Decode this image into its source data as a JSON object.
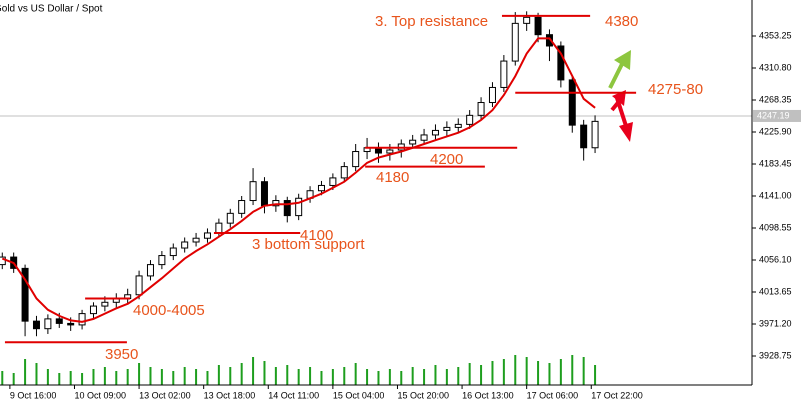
{
  "chart_data": {
    "type": "candlestick",
    "title": "Gold vs US Dollar / Spot",
    "x": [
      -6,
      -3,
      0,
      3,
      6,
      9,
      12,
      15,
      18,
      21,
      24,
      27,
      30,
      33,
      36,
      39,
      42,
      45,
      48,
      51,
      54,
      57,
      60,
      63,
      66,
      69,
      72,
      75,
      78,
      81,
      84,
      87,
      90,
      93,
      96,
      99,
      102,
      105,
      108,
      111,
      114,
      117,
      120,
      123,
      126,
      129,
      132,
      135,
      138,
      141,
      144,
      147,
      150
    ],
    "open": [
      4050,
      4060,
      4045,
      3975,
      3965,
      3978,
      3972,
      3970,
      3985,
      3995,
      4000,
      4005,
      4010,
      4035,
      4050,
      4062,
      4072,
      4080,
      4085,
      4092,
      4105,
      4118,
      4135,
      4160,
      4128,
      4135,
      4115,
      4138,
      4148,
      4155,
      4165,
      4180,
      4200,
      4205,
      4198,
      4202,
      4210,
      4215,
      4222,
      4228,
      4232,
      4236,
      4248,
      4265,
      4285,
      4320,
      4370,
      4378,
      4355,
      4340,
      4295,
      4235,
      4205
    ],
    "high": [
      4066,
      4066,
      4050,
      3982,
      3984,
      3986,
      3980,
      3990,
      4000,
      4008,
      4012,
      4018,
      4042,
      4056,
      4068,
      4078,
      4086,
      4092,
      4098,
      4111,
      4124,
      4141,
      4178,
      4166,
      4142,
      4140,
      4144,
      4154,
      4161,
      4171,
      4186,
      4210,
      4218,
      4212,
      4210,
      4216,
      4222,
      4230,
      4236,
      4240,
      4244,
      4255,
      4272,
      4292,
      4328,
      4385,
      4386,
      4384,
      4362,
      4346,
      4300,
      4242,
      4248
    ],
    "low": [
      4044,
      4039,
      3955,
      3955,
      3958,
      3966,
      3962,
      3964,
      3979,
      3988,
      3993,
      3998,
      4004,
      4029,
      4044,
      4056,
      4066,
      4074,
      4079,
      4086,
      4099,
      4112,
      4129,
      4118,
      4120,
      4106,
      4109,
      4132,
      4142,
      4149,
      4159,
      4174,
      4190,
      4185,
      4188,
      4192,
      4204,
      4209,
      4214,
      4220,
      4226,
      4230,
      4242,
      4259,
      4279,
      4314,
      4360,
      4345,
      4320,
      4285,
      4225,
      4188,
      4198
    ],
    "close": [
      4060,
      4045,
      3975,
      3965,
      3978,
      3972,
      3970,
      3985,
      3995,
      4000,
      4005,
      4010,
      4035,
      4050,
      4062,
      4072,
      4080,
      4085,
      4092,
      4105,
      4118,
      4135,
      4160,
      4128,
      4135,
      4115,
      4138,
      4148,
      4155,
      4165,
      4180,
      4200,
      4205,
      4198,
      4202,
      4210,
      4215,
      4222,
      4228,
      4232,
      4236,
      4248,
      4265,
      4285,
      4320,
      4370,
      4378,
      4355,
      4340,
      4295,
      4235,
      4205,
      4240
    ],
    "ma": [
      4058,
      4052,
      4030,
      4005,
      3990,
      3982,
      3976,
      3974,
      3978,
      3985,
      3992,
      3998,
      4008,
      4020,
      4032,
      4045,
      4058,
      4068,
      4077,
      4087,
      4097,
      4108,
      4120,
      4128,
      4130,
      4130,
      4132,
      4138,
      4144,
      4152,
      4160,
      4172,
      4185,
      4192,
      4196,
      4200,
      4205,
      4210,
      4215,
      4220,
      4225,
      4232,
      4242,
      4255,
      4275,
      4300,
      4330,
      4350,
      4350,
      4330,
      4300,
      4270,
      4258
    ],
    "ma_color": "#e00000",
    "volume": [
      14,
      12,
      26,
      22,
      16,
      12,
      14,
      12,
      16,
      18,
      14,
      16,
      22,
      18,
      16,
      14,
      18,
      16,
      14,
      20,
      18,
      22,
      28,
      24,
      18,
      20,
      16,
      18,
      14,
      16,
      18,
      22,
      16,
      14,
      16,
      14,
      18,
      16,
      20,
      16,
      18,
      22,
      20,
      24,
      26,
      30,
      28,
      24,
      22,
      26,
      30,
      28,
      20
    ],
    "volume_color": "#1e9e1e",
    "xlim": [
      -6.6,
      191.3
    ],
    "ylim": [
      3890.3,
      4401.0
    ],
    "yticks": [
      4353.25,
      {
        "value": 4310.8,
        "label": "4310.80"
      },
      4268.35,
      {
        "value": 4225.9,
        "label": "4225.90"
      },
      4183.45,
      {
        "value": 4141,
        "label": "4141.00"
      },
      4098.55,
      {
        "value": 4056.1,
        "label": "4056.10"
      },
      4013.65,
      {
        "value": 3971.2,
        "label": "3971.20"
      },
      3928.75
    ],
    "xticks": [
      {
        "value": -4,
        "label": "9 Oct 16:00"
      },
      {
        "value": 13,
        "label": "10 Oct 09:00"
      },
      {
        "value": 30,
        "label": "13 Oct 02:00"
      },
      {
        "value": 47,
        "label": "13 Oct 18:00"
      },
      {
        "value": 64,
        "label": "14 Oct 11:00"
      },
      {
        "value": 81,
        "label": "15 Oct 04:00"
      },
      {
        "value": 98,
        "label": "15 Oct 20:00"
      },
      {
        "value": 115,
        "label": "16 Oct 13:00"
      },
      {
        "value": 132,
        "label": "17 Oct 06:00"
      },
      {
        "value": 149,
        "label": "17 Oct 22:00"
      }
    ],
    "last_price": 4247.19,
    "annotations": [
      {
        "label": "4380",
        "note": "3. Top resistance",
        "level": 4380,
        "x": [
          125.5,
          148.7
        ]
      },
      {
        "label": "4275-80",
        "level": 4278,
        "x": [
          129,
          160.8
        ]
      },
      {
        "label": "4200",
        "level": 4205,
        "x": [
          89.5,
          129.5
        ]
      },
      {
        "label": "4180",
        "level": 4180,
        "x": [
          89.5,
          121
        ]
      },
      {
        "label": "4100",
        "note": "3 bottom support",
        "level": 4092,
        "x": [
          49.7,
          72.4
        ]
      },
      {
        "label": "4000-4005",
        "level": 4005,
        "x": [
          15.8,
          27.6
        ]
      },
      {
        "label": "3950",
        "level": 3947,
        "x": [
          -5.3,
          26.8
        ]
      }
    ]
  }
}
